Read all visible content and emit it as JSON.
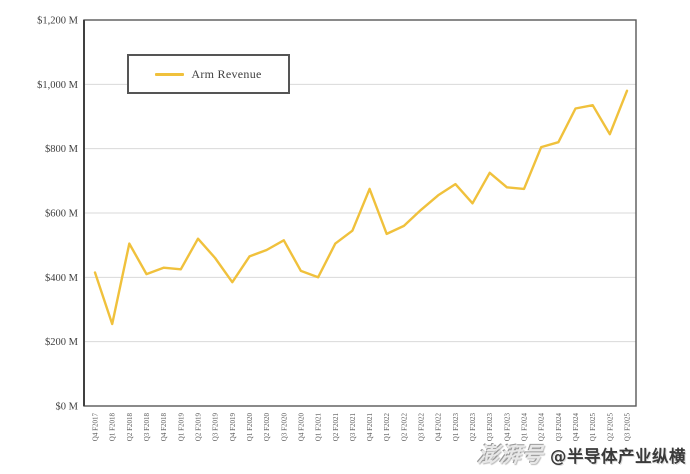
{
  "chart_data": {
    "type": "line",
    "title": "",
    "xlabel": "",
    "ylabel": "",
    "ylim": [
      0,
      1200
    ],
    "grid": "horizontal",
    "legend_position": "top-left-inside",
    "categories": [
      "Q4 F2017",
      "Q1 F2018",
      "Q2 F2018",
      "Q3 F2018",
      "Q4 F2018",
      "Q1 F2019",
      "Q2 F2019",
      "Q3 F2019",
      "Q4 F2019",
      "Q1 F2020",
      "Q2 F2020",
      "Q3 F2020",
      "Q4 F2020",
      "Q1 F2021",
      "Q2 F2021",
      "Q3 F2021",
      "Q4 F2021",
      "Q1 F2022",
      "Q2 F2022",
      "Q3 F2022",
      "Q4 F2022",
      "Q1 F2023",
      "Q2 F2023",
      "Q3 F2023",
      "Q4 F2023",
      "Q1 F2024",
      "Q2 F2024",
      "Q3 F2024",
      "Q4 F2024",
      "Q1 F2025",
      "Q2 F2025",
      "Q3 F2025"
    ],
    "series": [
      {
        "name": "Arm Revenue",
        "values": [
          415,
          255,
          505,
          410,
          430,
          425,
          520,
          460,
          385,
          465,
          485,
          515,
          420,
          400,
          505,
          545,
          675,
          535,
          560,
          610,
          655,
          690,
          630,
          725,
          680,
          675,
          805,
          820,
          925,
          935,
          845,
          980
        ]
      }
    ],
    "y_ticks": [
      {
        "label": "$0 M",
        "value": 0
      },
      {
        "label": "$200 M",
        "value": 200
      },
      {
        "label": "$400 M",
        "value": 400
      },
      {
        "label": "$600 M",
        "value": 600
      },
      {
        "label": "$800 M",
        "value": 800
      },
      {
        "label": "$1,000 M",
        "value": 1000
      },
      {
        "label": "$1,200 M",
        "value": 1200
      }
    ]
  },
  "watermark": {
    "logo": "澎湃号",
    "handle": "@半导体产业纵横"
  },
  "colors": {
    "line": "#F0C13C",
    "grid": "#D9D9D9",
    "border": "#595959",
    "axis": "#404040",
    "y_label_text": "#3F3F3F",
    "x_label_text": "#595959"
  }
}
